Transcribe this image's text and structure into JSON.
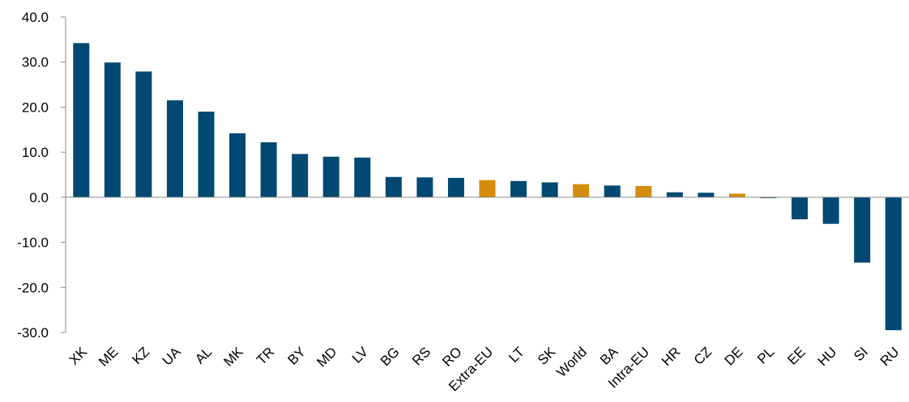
{
  "chart_data": {
    "type": "bar",
    "title": "",
    "xlabel": "",
    "ylabel": "",
    "ylim": [
      -30,
      40
    ],
    "yticks": [
      40,
      30,
      20,
      10,
      0,
      -10,
      -20,
      -30
    ],
    "ytick_labels": [
      "40.0",
      "30.0",
      "20.0",
      "10.0",
      "0.0",
      "-10.0",
      "-20.0",
      "-30.0"
    ],
    "categories": [
      "XK",
      "ME",
      "KZ",
      "UA",
      "AL",
      "MK",
      "TR",
      "BY",
      "MD",
      "LV",
      "BG",
      "RS",
      "RO",
      "Extra-EU",
      "LT",
      "SK",
      "World",
      "BA",
      "Intra-EU",
      "HR",
      "CZ",
      "DE",
      "PL",
      "EE",
      "HU",
      "SI",
      "RU"
    ],
    "values": [
      34.2,
      29.9,
      27.9,
      21.5,
      19.0,
      14.2,
      12.2,
      9.6,
      9.0,
      8.8,
      4.5,
      4.4,
      4.3,
      3.8,
      3.6,
      3.3,
      2.9,
      2.6,
      2.5,
      1.1,
      1.0,
      0.8,
      -0.2,
      -4.9,
      -5.9,
      -14.5,
      -29.5
    ],
    "highlight": [
      "Extra-EU",
      "World",
      "Intra-EU",
      "DE"
    ],
    "grid": false,
    "legend": "none",
    "colors": {
      "default": "#014872",
      "highlight": "#d48c0d",
      "axis": "#8c8c8c"
    }
  }
}
